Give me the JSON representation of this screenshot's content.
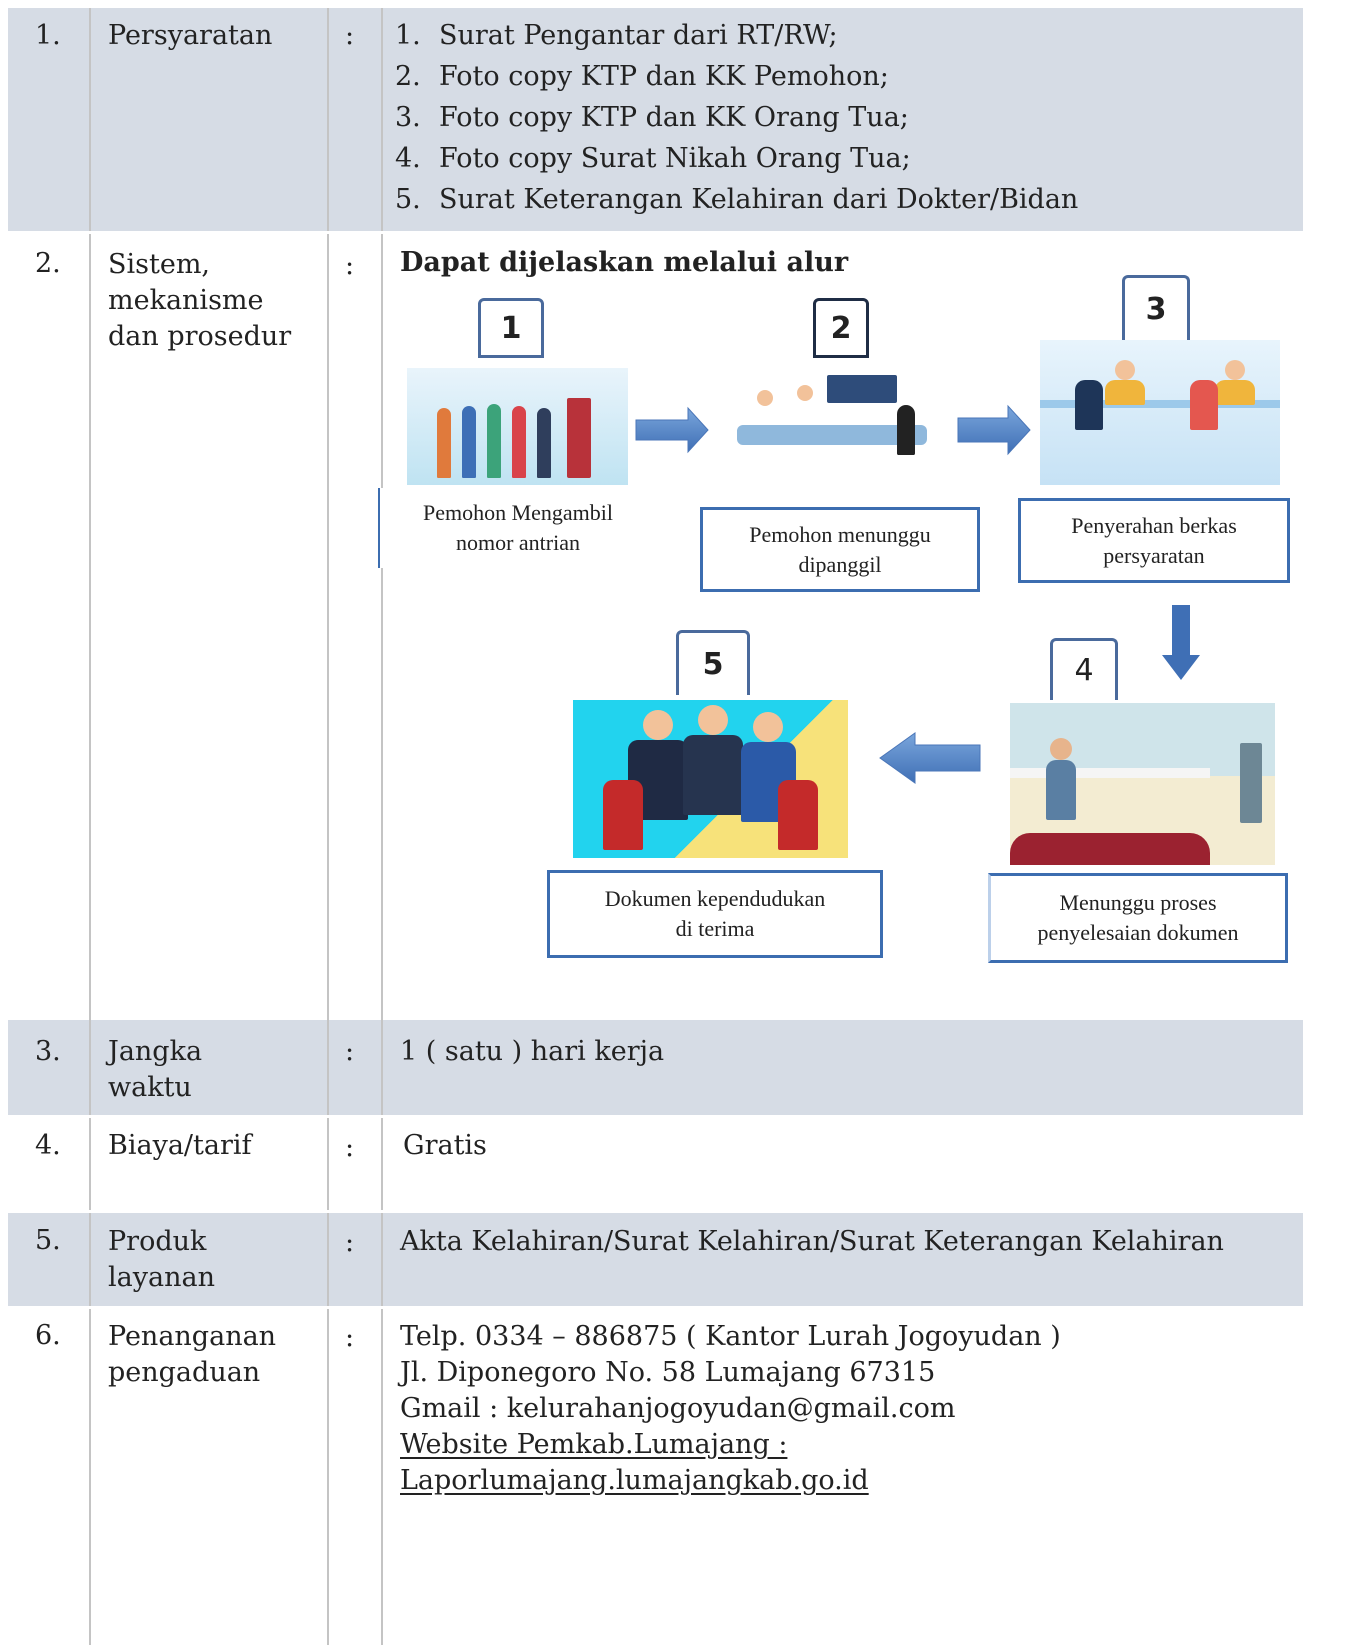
{
  "rows": [
    {
      "no": "1.",
      "label": "Persyaratan",
      "separator": ":",
      "items": [
        {
          "no": "1.",
          "text": "Surat Pengantar dari RT/RW;"
        },
        {
          "no": "2.",
          "text": "Foto copy KTP dan KK Pemohon;"
        },
        {
          "no": "3.",
          "text": "Foto copy KTP dan KK Orang Tua;"
        },
        {
          "no": "4.",
          "text": "Foto copy Surat Nikah Orang Tua;"
        },
        {
          "no": "5.",
          "text": "Surat Keterangan Kelahiran dari Dokter/Bidan"
        }
      ]
    },
    {
      "no": "2.",
      "label": "Sistem,\nmekanisme\ndan prosedur",
      "separator": ":",
      "heading": "Dapat dijelaskan melalui alur",
      "steps": [
        {
          "number": "1",
          "caption": "Pemohon Mengambil\nnomor antrian"
        },
        {
          "number": "2",
          "caption": "Pemohon menunggu\ndipanggil"
        },
        {
          "number": "3",
          "caption": "Penyerahan berkas\npersyaratan"
        },
        {
          "number": "4",
          "caption": "Menunggu proses\npenyelesaian dokumen"
        },
        {
          "number": "5",
          "caption": "Dokumen kependudukan\ndi terima"
        }
      ]
    },
    {
      "no": "3.",
      "label": "Jangka\nwaktu",
      "separator": ":",
      "text": "1 ( satu ) hari kerja"
    },
    {
      "no": "4.",
      "label": "Biaya/tarif",
      "separator": ":",
      "text": "Gratis"
    },
    {
      "no": "5.",
      "label": "Produk\nlayanan",
      "separator": ":",
      "text": "Akta Kelahiran/Surat Kelahiran/Surat Keterangan Kelahiran"
    },
    {
      "no": "6.",
      "label": "Penanganan\npengaduan",
      "separator": ":",
      "lines": [
        "Telp. 0334 – 886875 ( Kantor Lurah Jogoyudan )",
        "Jl. Diponegoro No. 58 Lumajang 67315",
        "Gmail : kelurahanjogoyudan@gmail.com"
      ],
      "links": [
        "Website Pemkab.Lumajang :",
        "Laporlumajang.lumajangkab.go.id"
      ]
    }
  ]
}
